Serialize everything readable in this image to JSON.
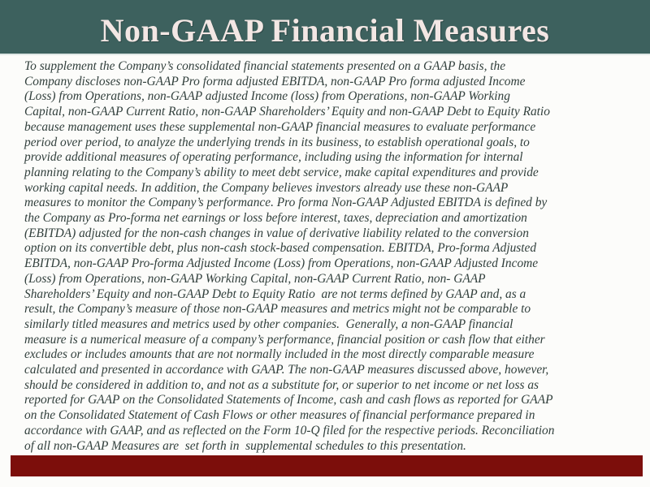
{
  "slide": {
    "title": "Non-GAAP Financial Measures",
    "body_lines": [
      "To supplement the Company’s consolidated financial statements presented on a GAAP basis, the",
      "Company discloses non-GAAP Pro forma adjusted EBITDA, non-GAAP Pro forma adjusted Income",
      "(Loss) from Operations, non-GAAP adjusted Income (loss) from Operations, non-GAAP Working",
      "Capital, non-GAAP Current Ratio, non-GAAP Shareholders’ Equity and non-GAAP Debt to Equity Ratio",
      "because management uses these supplemental non-GAAP financial measures to evaluate performance",
      "period over period, to analyze the underlying trends in its business, to establish operational goals, to",
      "provide additional measures of operating performance, including using the information for internal",
      "planning relating to the Company’s ability to meet debt service, make capital expenditures and provide",
      "working capital needs. In addition, the Company believes investors already use these non-GAAP",
      "measures to monitor the Company’s performance. Pro forma Non-GAAP Adjusted EBITDA is defined by",
      "the Company as Pro-forma net earnings or loss before interest, taxes, depreciation and amortization",
      "(EBITDA) adjusted for the non-cash changes in value of derivative liability related to the conversion",
      "option on its convertible debt, plus non-cash stock-based compensation. EBITDA, Pro-forma Adjusted",
      "EBITDA, non-GAAP Pro-forma Adjusted Income (Loss) from Operations, non-GAAP Adjusted Income",
      "(Loss) from Operations, non-GAAP Working Capital, non-GAAP Current Ratio, non- GAAP",
      "Shareholders’ Equity and non-GAAP Debt to Equity Ratio  are not terms defined by GAAP and, as a",
      "result, the Company’s measure of those non-GAAP measures and metrics might not be comparable to",
      "similarly titled measures and metrics used by other companies.  Generally, a non-GAAP financial",
      "measure is a numerical measure of a company’s performance, financial position or cash flow that either",
      "excludes or includes amounts that are not normally included in the most directly comparable measure",
      "calculated and presented in accordance with GAAP. The non-GAAP measures discussed above, however,",
      "should be considered in addition to, and not as a substitute for, or superior to net income or net loss as",
      "reported for GAAP on the Consolidated Statements of Income, cash and cash flows as reported for GAAP",
      "on the Consolidated Statement of Cash Flows or other measures of financial performance prepared in",
      "accordance with GAAP, and as reflected on the Form 10-Q filed for the respective periods. Reconciliation",
      "of all non-GAAP Measures are  set forth in  supplemental schedules to this presentation."
    ],
    "colors": {
      "header_bg": "#3d615e",
      "title_text": "#f3e7e4",
      "body_text": "#313f3c",
      "accent_bar": "#7c0e0b",
      "body_bg": "#fcfcfa"
    }
  }
}
